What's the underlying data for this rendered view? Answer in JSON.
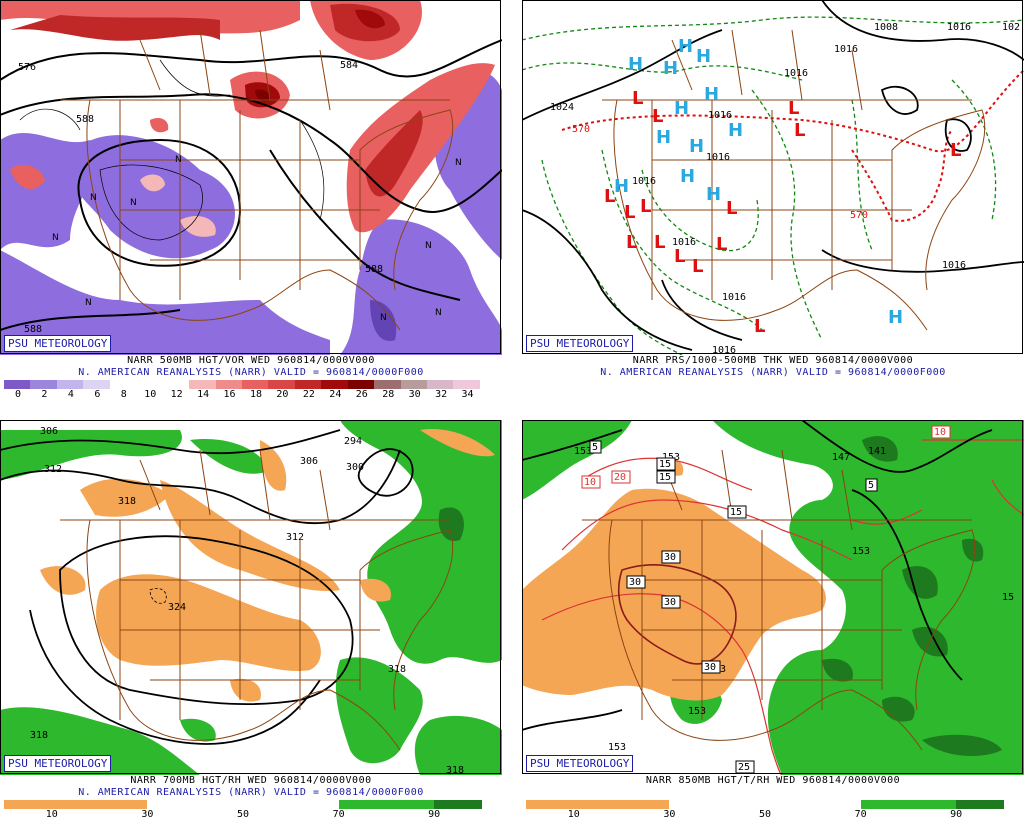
{
  "badge": "PSU METEOROLOGY",
  "panels": {
    "p500": {
      "title": "NARR 500MB HGT/VOR WED 960814/0000V000",
      "subtitle": "N. AMERICAN REANALYSIS (NARR) VALID = 960814/0000F000",
      "labels": [
        "576",
        "584",
        "588",
        "588",
        "588"
      ],
      "vort_labels": [
        "N",
        "N",
        "N",
        "N",
        "N",
        "N",
        "N",
        "N",
        "N"
      ],
      "colorbar": {
        "colors": [
          "#7e5ac8",
          "#9c86dc",
          "#c2b4ec",
          "#ddd4f4",
          "#ffffff",
          "#ffffff",
          "#ffffff",
          "#f4b8b8",
          "#ee8c8c",
          "#e86060",
          "#d84646",
          "#c02828",
          "#a00a0a",
          "#7c0000",
          "#9c6e6e",
          "#b89c9c",
          "#d8b8c8",
          "#f0c8dc"
        ],
        "ticks": [
          "0",
          "2",
          "4",
          "6",
          "8",
          "10",
          "12",
          "14",
          "16",
          "18",
          "20",
          "22",
          "24",
          "26",
          "28",
          "30",
          "32",
          "34"
        ]
      }
    },
    "ptrk": {
      "title": "NARR PRS/1000-500MB THK WED 960814/0000V000",
      "subtitle": "N. AMERICAN REANALYSIS (NARR) VALID = 960814/0000F000",
      "labels": [
        "1008",
        "1016",
        "102",
        "1016",
        "1024",
        "1016",
        "1016",
        "1016",
        "1016",
        "1016",
        "1016",
        "1016",
        "1016"
      ],
      "thk_labels": [
        "570",
        "570"
      ],
      "highs": [
        "H",
        "H",
        "H",
        "H",
        "H",
        "H",
        "H",
        "H",
        "H",
        "H",
        "H",
        "H",
        "H"
      ],
      "lows": [
        "L",
        "L",
        "L",
        "L",
        "L",
        "L",
        "L",
        "L",
        "L",
        "L",
        "L",
        "L",
        "L",
        "L",
        "L"
      ]
    },
    "p700": {
      "title": "NARR 700MB HGT/RH WED 960814/0000V000",
      "subtitle": "N. AMERICAN REANALYSIS (NARR) VALID = 960814/0000F000",
      "labels": [
        "306",
        "312",
        "318",
        "306",
        "294",
        "300",
        "312",
        "324",
        "318",
        "318",
        "318"
      ],
      "colorbar": {
        "segments": [
          {
            "from": 0,
            "to": 30,
            "color": "#f5a654"
          },
          {
            "from": 30,
            "to": 70,
            "color": "#ffffff"
          },
          {
            "from": 70,
            "to": 90,
            "color": "#2eb82e"
          },
          {
            "from": 90,
            "to": 100,
            "color": "#1e7a1e"
          }
        ],
        "ticks": [
          "10",
          "30",
          "50",
          "70",
          "90"
        ]
      }
    },
    "p850": {
      "title": "NARR 850MB HGT/T/RH WED 960814/0000V000",
      "labels": [
        "153",
        "147",
        "141",
        "153",
        "153",
        "153",
        "153",
        "153",
        "15"
      ],
      "temp_labels": [
        "10",
        "20",
        "10",
        "5",
        "15",
        "15",
        "15",
        "30",
        "30",
        "30",
        "30",
        "5",
        "25"
      ],
      "colorbar": {
        "segments": [
          {
            "from": 0,
            "to": 30,
            "color": "#f5a654"
          },
          {
            "from": 30,
            "to": 70,
            "color": "#ffffff"
          },
          {
            "from": 70,
            "to": 90,
            "color": "#2eb82e"
          },
          {
            "from": 90,
            "to": 100,
            "color": "#1e7a1e"
          }
        ],
        "ticks": [
          "10",
          "30",
          "50",
          "70",
          "90"
        ]
      }
    }
  },
  "colors": {
    "border": "#8b4513",
    "high": "#29a9e0",
    "low": "#e01010",
    "dry": "#f5a654",
    "moist": "#2eb82e",
    "vort_neg": "#8866dd",
    "vort_pos": "#e05050",
    "badge_text": "#1c1ca8"
  }
}
